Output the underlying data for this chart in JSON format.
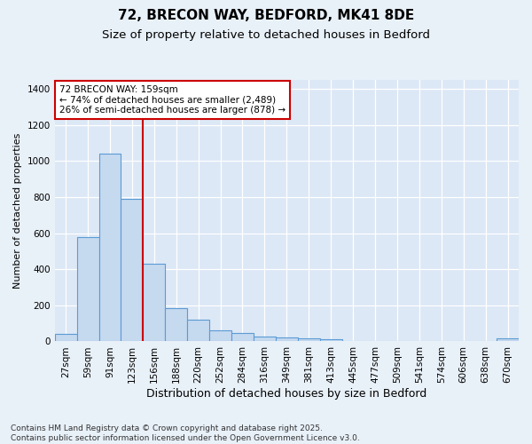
{
  "title": "72, BRECON WAY, BEDFORD, MK41 8DE",
  "subtitle": "Size of property relative to detached houses in Bedford",
  "xlabel": "Distribution of detached houses by size in Bedford",
  "ylabel": "Number of detached properties",
  "categories": [
    "27sqm",
    "59sqm",
    "91sqm",
    "123sqm",
    "156sqm",
    "188sqm",
    "220sqm",
    "252sqm",
    "284sqm",
    "316sqm",
    "349sqm",
    "381sqm",
    "413sqm",
    "445sqm",
    "477sqm",
    "509sqm",
    "541sqm",
    "574sqm",
    "606sqm",
    "638sqm",
    "670sqm"
  ],
  "values": [
    40,
    580,
    1040,
    790,
    430,
    185,
    120,
    60,
    45,
    25,
    20,
    15,
    10,
    0,
    0,
    0,
    0,
    0,
    0,
    0,
    15
  ],
  "bar_color": "#c5d9ef",
  "bar_edge_color": "#5b9bd5",
  "bar_edge_width": 0.8,
  "highlight_index": 4,
  "highlight_line_color": "#cc0000",
  "annotation_text": "72 BRECON WAY: 159sqm\n← 74% of detached houses are smaller (2,489)\n26% of semi-detached houses are larger (878) →",
  "annotation_box_color": "white",
  "annotation_box_edge": "#cc0000",
  "annotation_fontsize": 7.5,
  "ylim": [
    0,
    1450
  ],
  "yticks": [
    0,
    200,
    400,
    600,
    800,
    1000,
    1200,
    1400
  ],
  "bg_color": "#e8f0f8",
  "plot_bg_color": "#dce8f5",
  "footer_line1": "Contains HM Land Registry data © Crown copyright and database right 2025.",
  "footer_line2": "Contains public sector information licensed under the Open Government Licence v3.0.",
  "title_fontsize": 11,
  "subtitle_fontsize": 9.5,
  "xlabel_fontsize": 9,
  "ylabel_fontsize": 8,
  "tick_fontsize": 7.5,
  "footer_fontsize": 6.5
}
